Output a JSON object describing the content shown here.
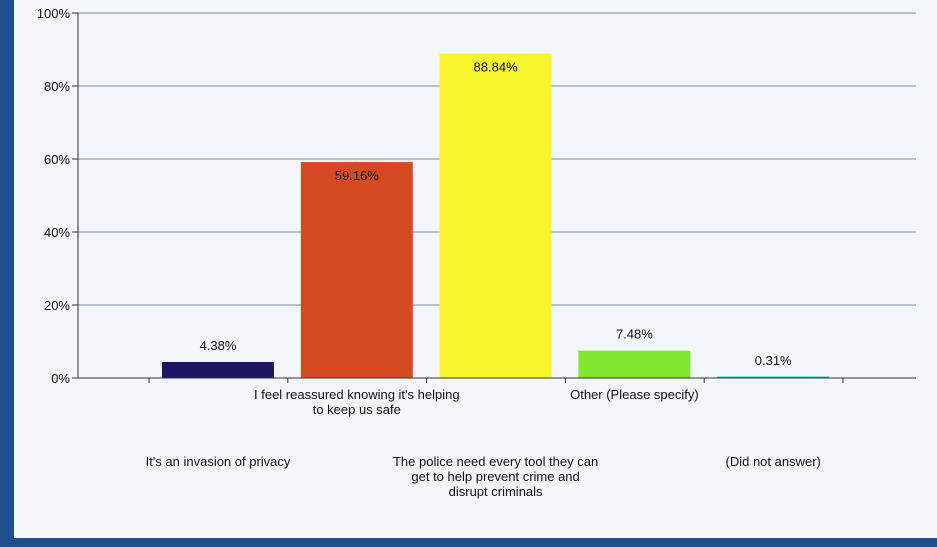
{
  "chart_data": {
    "type": "bar",
    "categories": [
      "It's an invasion of privacy",
      "I feel reassured knowing it's helping to keep us safe",
      "The police need every tool they can get to help prevent crime and disrupt criminals",
      "Other (Please specify)",
      "(Did not answer)"
    ],
    "category_label_lines": [
      [
        "It's an invasion of privacy"
      ],
      [
        "I feel reassured knowing it's helping",
        "to keep us safe"
      ],
      [
        "The police need every tool they can",
        "get to help prevent crime and",
        "disrupt criminals"
      ],
      [
        "Other (Please specify)"
      ],
      [
        "(Did not answer)"
      ]
    ],
    "values": [
      4.38,
      59.16,
      88.84,
      7.48,
      0.31
    ],
    "data_labels": [
      "4.38%",
      "59.16%",
      "88.84%",
      "7.48%",
      "0.31%"
    ],
    "colors": [
      "#1b1464",
      "#d44a22",
      "#f8f52f",
      "#80e632",
      "#1fc6b6"
    ],
    "ylim": [
      0,
      100
    ],
    "yticks": [
      "0%",
      "20%",
      "40%",
      "60%",
      "80%",
      "100%"
    ],
    "grid": true,
    "title": "",
    "xlabel": "",
    "ylabel": ""
  }
}
